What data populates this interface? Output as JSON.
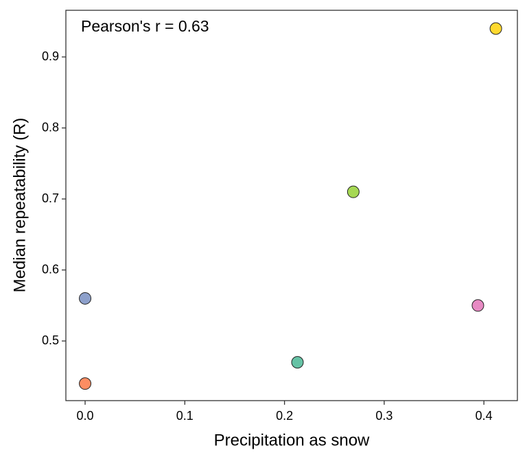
{
  "chart_data": {
    "type": "scatter",
    "annotation": "Pearson's r =  0.63",
    "x_label": "Precipitation as snow",
    "y_label": "Median repeatability (R)",
    "x": [
      0,
      0,
      0.213,
      0.269,
      0.394,
      0.412
    ],
    "values": [
      0.56,
      0.44,
      0.47,
      0.71,
      0.55,
      0.94
    ],
    "colors": [
      "#8da0cb",
      "#fc8d62",
      "#66c2a5",
      "#a6d854",
      "#e78ac3",
      "#ffd92f"
    ],
    "xlim": [
      -0.0193,
      0.4336
    ],
    "ylim": [
      0.416,
      0.9657
    ],
    "xticks": [
      {
        "value": 0,
        "label": "0.0"
      },
      0.1,
      0.2,
      0.3,
      0.4
    ],
    "yticks": [
      0.5,
      0.6,
      0.7,
      0.8,
      0.9
    ]
  }
}
